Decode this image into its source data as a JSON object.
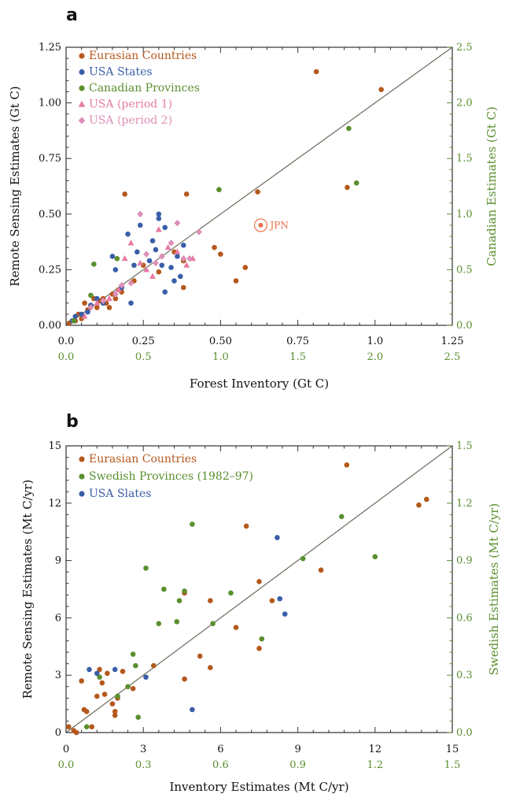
{
  "panels": [
    {
      "letter": "a",
      "ylabel": "Remote Sensing Estimates (Gt C)",
      "xlabel": "Forest Inventory (Gt C)",
      "ylabel2": "Canadian Estimates (Gt C)",
      "colors": {
        "axis": "#333333",
        "secondary": "#5a8f2e"
      },
      "x_ticks": [
        "0.0",
        "0.25",
        "0.50",
        "0.75",
        "1.0",
        "1.25"
      ],
      "x2_ticks": [
        "0.0",
        "0.5",
        "1.0",
        "1.5",
        "2.0",
        "2.5"
      ],
      "y_ticks": [
        "0.00",
        "0.25",
        "0.50",
        "0.75",
        "1.00",
        "1.25"
      ],
      "y2_ticks": [
        "0.0",
        "0.5",
        "1.0",
        "1.5",
        "2.0",
        "2.5"
      ],
      "annotation": {
        "label": "JPN",
        "x": 0.63,
        "y": 0.45,
        "color": "#e8734a"
      }
    },
    {
      "letter": "b",
      "ylabel": "Remote Sensing Estimates (Mt C/yr)",
      "xlabel": "Inventory Estimates (Mt C/yr)",
      "ylabel2": "Swedish Estimates (Mt C/yr)",
      "colors": {
        "axis": "#333333",
        "secondary": "#5a8f2e"
      },
      "x_ticks": [
        "0",
        "3",
        "6",
        "9",
        "12",
        "15"
      ],
      "x2_ticks": [
        "0.0",
        "0.3",
        "0.6",
        "0.9",
        "1.2",
        "1.5"
      ],
      "y_ticks": [
        "0",
        "3",
        "6",
        "9",
        "12",
        "15"
      ],
      "y2_ticks": [
        "0.0",
        "0.3",
        "0.6",
        "0.9",
        "1.2",
        "1.5"
      ]
    }
  ],
  "chart_data": [
    {
      "type": "scatter",
      "xlim": [
        0,
        1.25
      ],
      "ylim": [
        0,
        1.25
      ],
      "x2lim": [
        0,
        2.5
      ],
      "y2lim": [
        0,
        2.5
      ],
      "reference_line": "1:1",
      "legend_position": "top-left",
      "series": [
        {
          "name": "Eurasian Countries",
          "color": "#b5581c",
          "marker": "circle",
          "points": [
            [
              0.01,
              0.01
            ],
            [
              0.02,
              0.02
            ],
            [
              0.03,
              0.02
            ],
            [
              0.04,
              0.05
            ],
            [
              0.05,
              0.03
            ],
            [
              0.06,
              0.1
            ],
            [
              0.07,
              0.07
            ],
            [
              0.08,
              0.09
            ],
            [
              0.09,
              0.12
            ],
            [
              0.1,
              0.08
            ],
            [
              0.11,
              0.11
            ],
            [
              0.12,
              0.12
            ],
            [
              0.13,
              0.1
            ],
            [
              0.14,
              0.08
            ],
            [
              0.15,
              0.14
            ],
            [
              0.16,
              0.12
            ],
            [
              0.17,
              0.16
            ],
            [
              0.18,
              0.15
            ],
            [
              0.19,
              0.59
            ],
            [
              0.22,
              0.2
            ],
            [
              0.25,
              0.27
            ],
            [
              0.3,
              0.24
            ],
            [
              0.35,
              0.33
            ],
            [
              0.38,
              0.29
            ],
            [
              0.38,
              0.17
            ],
            [
              0.39,
              0.59
            ],
            [
              0.48,
              0.35
            ],
            [
              0.5,
              0.32
            ],
            [
              0.55,
              0.2
            ],
            [
              0.58,
              0.26
            ],
            [
              0.62,
              0.6
            ],
            [
              0.81,
              1.14
            ],
            [
              0.91,
              0.62
            ],
            [
              1.02,
              1.06
            ]
          ]
        },
        {
          "name": "USA States",
          "color": "#3a5ea8",
          "marker": "circle",
          "points": [
            [
              0.02,
              0.02
            ],
            [
              0.03,
              0.04
            ],
            [
              0.05,
              0.05
            ],
            [
              0.07,
              0.06
            ],
            [
              0.08,
              0.09
            ],
            [
              0.1,
              0.12
            ],
            [
              0.12,
              0.1
            ],
            [
              0.15,
              0.31
            ],
            [
              0.16,
              0.25
            ],
            [
              0.18,
              0.17
            ],
            [
              0.2,
              0.41
            ],
            [
              0.22,
              0.27
            ],
            [
              0.23,
              0.33
            ],
            [
              0.24,
              0.45
            ],
            [
              0.27,
              0.29
            ],
            [
              0.28,
              0.38
            ],
            [
              0.29,
              0.34
            ],
            [
              0.3,
              0.48
            ],
            [
              0.3,
              0.5
            ],
            [
              0.31,
              0.27
            ],
            [
              0.32,
              0.44
            ],
            [
              0.32,
              0.15
            ],
            [
              0.34,
              0.26
            ],
            [
              0.35,
              0.2
            ],
            [
              0.36,
              0.31
            ],
            [
              0.37,
              0.22
            ],
            [
              0.38,
              0.36
            ],
            [
              0.21,
              0.1
            ]
          ]
        },
        {
          "name": "Canadian Provinces",
          "color": "#5a8f2e",
          "marker": "circle",
          "points": [
            [
              0.05,
              0.04
            ],
            [
              0.16,
              0.27
            ],
            [
              0.18,
              0.55
            ],
            [
              0.33,
              0.6
            ],
            [
              0.99,
              1.22
            ],
            [
              1.83,
              1.77
            ],
            [
              1.88,
              1.28
            ]
          ]
        },
        {
          "name": "USA (period 1)",
          "color": "#e87aa4",
          "marker": "triangle",
          "points": [
            [
              0.06,
              0.04
            ],
            [
              0.1,
              0.1
            ],
            [
              0.14,
              0.12
            ],
            [
              0.17,
              0.16
            ],
            [
              0.19,
              0.3
            ],
            [
              0.21,
              0.37
            ],
            [
              0.24,
              0.28
            ],
            [
              0.26,
              0.25
            ],
            [
              0.28,
              0.22
            ],
            [
              0.3,
              0.43
            ],
            [
              0.33,
              0.35
            ],
            [
              0.36,
              0.33
            ],
            [
              0.39,
              0.27
            ],
            [
              0.41,
              0.3
            ]
          ]
        },
        {
          "name": "USA (period 2)",
          "color": "#dd8fb7",
          "marker": "diamond",
          "points": [
            [
              0.08,
              0.08
            ],
            [
              0.12,
              0.11
            ],
            [
              0.16,
              0.14
            ],
            [
              0.18,
              0.18
            ],
            [
              0.21,
              0.19
            ],
            [
              0.24,
              0.5
            ],
            [
              0.26,
              0.32
            ],
            [
              0.29,
              0.28
            ],
            [
              0.31,
              0.31
            ],
            [
              0.34,
              0.37
            ],
            [
              0.36,
              0.46
            ],
            [
              0.38,
              0.3
            ],
            [
              0.4,
              0.3
            ],
            [
              0.43,
              0.42
            ]
          ]
        }
      ]
    },
    {
      "type": "scatter",
      "xlim": [
        0,
        15
      ],
      "ylim": [
        0,
        15
      ],
      "x2lim": [
        0,
        1.5
      ],
      "y2lim": [
        0,
        1.5
      ],
      "reference_line": "1:1",
      "legend_position": "top-left",
      "series": [
        {
          "name": "Eurasian Countries",
          "color": "#b5581c",
          "marker": "circle",
          "points": [
            [
              0.1,
              0.3
            ],
            [
              0.3,
              0.1
            ],
            [
              0.4,
              0.0
            ],
            [
              0.6,
              2.7
            ],
            [
              0.7,
              1.2
            ],
            [
              0.8,
              1.1
            ],
            [
              1.0,
              0.3
            ],
            [
              1.2,
              1.9
            ],
            [
              1.3,
              3.3
            ],
            [
              1.4,
              2.6
            ],
            [
              1.5,
              2.0
            ],
            [
              1.6,
              3.1
            ],
            [
              1.8,
              1.5
            ],
            [
              1.9,
              1.1
            ],
            [
              1.9,
              0.9
            ],
            [
              2.0,
              1.8
            ],
            [
              2.2,
              3.2
            ],
            [
              2.6,
              2.3
            ],
            [
              3.4,
              3.5
            ],
            [
              4.6,
              2.8
            ],
            [
              4.6,
              7.3
            ],
            [
              5.2,
              4.0
            ],
            [
              5.6,
              3.4
            ],
            [
              5.6,
              6.9
            ],
            [
              6.6,
              5.5
            ],
            [
              7.0,
              10.8
            ],
            [
              7.5,
              7.9
            ],
            [
              7.5,
              4.4
            ],
            [
              8.0,
              6.9
            ],
            [
              9.9,
              8.5
            ],
            [
              10.9,
              14.0
            ],
            [
              13.7,
              11.9
            ],
            [
              14.0,
              12.2
            ]
          ]
        },
        {
          "name": "Swedish Provinces (1982–97)",
          "color": "#5a8f2e",
          "marker": "circle",
          "points": [
            [
              0.08,
              0.03
            ],
            [
              0.13,
              0.29
            ],
            [
              0.2,
              0.19
            ],
            [
              0.24,
              0.24
            ],
            [
              0.26,
              0.41
            ],
            [
              0.27,
              0.35
            ],
            [
              0.28,
              0.08
            ],
            [
              0.31,
              0.86
            ],
            [
              0.36,
              0.57
            ],
            [
              0.38,
              0.75
            ],
            [
              0.43,
              0.58
            ],
            [
              0.44,
              0.69
            ],
            [
              0.46,
              0.74
            ],
            [
              0.49,
              1.09
            ],
            [
              0.57,
              0.57
            ],
            [
              0.64,
              0.73
            ],
            [
              0.76,
              0.49
            ],
            [
              0.92,
              0.91
            ],
            [
              1.07,
              1.13
            ],
            [
              1.2,
              0.92
            ]
          ]
        },
        {
          "name": "USA Slates",
          "color": "#3a5ea8",
          "marker": "circle",
          "points": [
            [
              0.9,
              3.3
            ],
            [
              1.2,
              3.1
            ],
            [
              1.9,
              3.3
            ],
            [
              3.1,
              2.9
            ],
            [
              4.9,
              1.2
            ],
            [
              8.2,
              10.2
            ],
            [
              8.3,
              7.0
            ],
            [
              8.5,
              6.2
            ]
          ]
        }
      ]
    }
  ]
}
